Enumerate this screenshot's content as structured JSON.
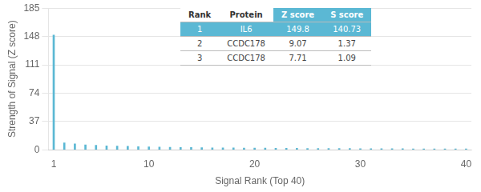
{
  "chart_data": {
    "type": "bar",
    "xlabel": "Signal Rank (Top 40)",
    "ylabel": "Strength of Signal (Z score)",
    "x": [
      1,
      2,
      3,
      4,
      5,
      6,
      7,
      8,
      9,
      10,
      11,
      12,
      13,
      14,
      15,
      16,
      17,
      18,
      19,
      20,
      21,
      22,
      23,
      24,
      25,
      26,
      27,
      28,
      29,
      30,
      31,
      32,
      33,
      34,
      35,
      36,
      37,
      38,
      39,
      40
    ],
    "values": [
      149.8,
      9.07,
      7.71,
      6.5,
      5.8,
      5.2,
      4.9,
      4.5,
      4.1,
      3.8,
      3.5,
      3.3,
      3.1,
      2.9,
      2.7,
      2.6,
      2.5,
      2.4,
      2.3,
      2.2,
      2.1,
      2.0,
      1.9,
      1.85,
      1.8,
      1.75,
      1.7,
      1.65,
      1.6,
      1.55,
      1.5,
      1.45,
      1.4,
      1.35,
      1.3,
      1.25,
      1.2,
      1.15,
      1.1,
      1.05
    ],
    "color": "#5bb8d4",
    "xlim": [
      0.5,
      40.5
    ],
    "ylim": [
      0,
      185
    ],
    "xticks": [
      1,
      10,
      20,
      30,
      40
    ],
    "yticks": [
      0,
      37,
      74,
      111,
      148,
      185
    ],
    "grid": "y",
    "table": {
      "columns": [
        "Rank",
        "Protein",
        "Z score",
        "S score"
      ],
      "rows": [
        [
          "1",
          "IL6",
          "149.8",
          "140.73"
        ],
        [
          "2",
          "CCDC178",
          "9.07",
          "1.37"
        ],
        [
          "3",
          "CCDC178",
          "7.71",
          "1.09"
        ]
      ]
    }
  }
}
